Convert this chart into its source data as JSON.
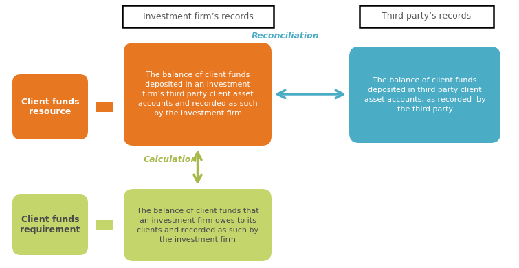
{
  "bg_color": "#ffffff",
  "orange_color": "#E87722",
  "teal_color": "#4BACC6",
  "green_color": "#C4D56C",
  "text_white": "#ffffff",
  "text_dark": "#4a4a4a",
  "text_dark2": "#5a5a5a",
  "reconciliation_color": "#4BACC6",
  "calculation_color": "#A8B84A",
  "header1_text": "Investment firm’s records",
  "header2_text": "Third party’s records",
  "box1_label": "Client funds\nresource",
  "box2_text": "The balance of client funds\ndeposited in an investment\nfirm’s third party client asset\naccounts and recorded as such\nby the investment firm",
  "box3_text": "The balance of client funds\ndeposited in third party client\nasset accounts, as recorded  by\nthe third party",
  "box4_label": "Client funds\nrequirement",
  "box5_text": "The balance of client funds that\nan investment firm owes to its\nclients and recorded as such by\nthe investment firm",
  "reconciliation_label": "Reconciliation",
  "calculation_label": "Calculation",
  "figsize": [
    7.55,
    3.9
  ],
  "dpi": 100
}
